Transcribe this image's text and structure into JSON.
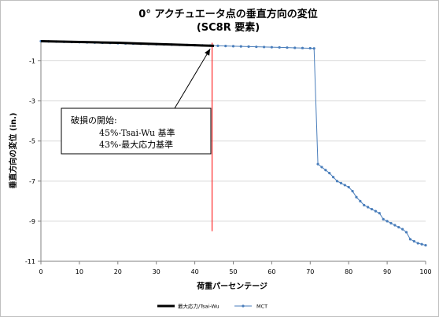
{
  "chart_data": {
    "type": "line",
    "title": "0° アクチュエータ点の垂直方向の変位",
    "subtitle": "(SC8R 要素)",
    "xlabel": "荷重パーセンテージ",
    "ylabel": "垂直方向の変位 (in.)",
    "xlim": [
      0,
      100
    ],
    "ylim": [
      -11,
      0
    ],
    "xticks": [
      0,
      10,
      20,
      30,
      40,
      50,
      60,
      70,
      80,
      90,
      100
    ],
    "yticks": [
      -1,
      -3,
      -5,
      -7,
      -9,
      -11
    ],
    "grid": "horizontal",
    "legend_position": "bottom",
    "series": [
      {
        "name": "最大応力/Tsai-Wu",
        "color": "#000000",
        "x": [
          0,
          5,
          10,
          15,
          20,
          25,
          30,
          35,
          40,
          45
        ],
        "y": [
          -0.02,
          -0.04,
          -0.06,
          -0.08,
          -0.1,
          -0.13,
          -0.16,
          -0.19,
          -0.22,
          -0.25
        ]
      },
      {
        "name": "MCT",
        "color": "#4a7ebb",
        "x": [
          0,
          2,
          4,
          6,
          8,
          10,
          12,
          14,
          16,
          18,
          20,
          22,
          24,
          26,
          28,
          30,
          32,
          34,
          36,
          38,
          40,
          42,
          44,
          46,
          48,
          50,
          52,
          54,
          56,
          58,
          60,
          62,
          64,
          66,
          68,
          70,
          71,
          72,
          73,
          74,
          75,
          76,
          77,
          78,
          79,
          80,
          81,
          82,
          83,
          84,
          85,
          86,
          87,
          88,
          89,
          90,
          91,
          92,
          93,
          94,
          95,
          96,
          97,
          98,
          99,
          100
        ],
        "y": [
          -0.02,
          -0.03,
          -0.04,
          -0.05,
          -0.06,
          -0.07,
          -0.08,
          -0.09,
          -0.1,
          -0.11,
          -0.12,
          -0.13,
          -0.14,
          -0.15,
          -0.16,
          -0.17,
          -0.18,
          -0.19,
          -0.2,
          -0.21,
          -0.22,
          -0.23,
          -0.24,
          -0.25,
          -0.26,
          -0.27,
          -0.28,
          -0.29,
          -0.3,
          -0.31,
          -0.32,
          -0.33,
          -0.34,
          -0.35,
          -0.36,
          -0.37,
          -0.38,
          -6.15,
          -6.3,
          -6.45,
          -6.6,
          -6.8,
          -7.0,
          -7.1,
          -7.2,
          -7.3,
          -7.5,
          -7.8,
          -8.0,
          -8.2,
          -8.3,
          -8.4,
          -8.5,
          -8.6,
          -8.9,
          -9.0,
          -9.1,
          -9.2,
          -9.3,
          -9.4,
          -9.55,
          -9.9,
          -10.0,
          -10.1,
          -10.15,
          -10.2
        ]
      }
    ],
    "annotations": [
      {
        "line1": "破損の開始:",
        "line2": "45%-Tsai-Wu 基準",
        "line3": "43%-最大応力基準",
        "arrow_to": [
          44,
          -0.4
        ]
      }
    ],
    "reference_line": {
      "x": 44.5,
      "y_range": [
        -0.1,
        -9.5
      ],
      "color": "#ff0000"
    }
  }
}
